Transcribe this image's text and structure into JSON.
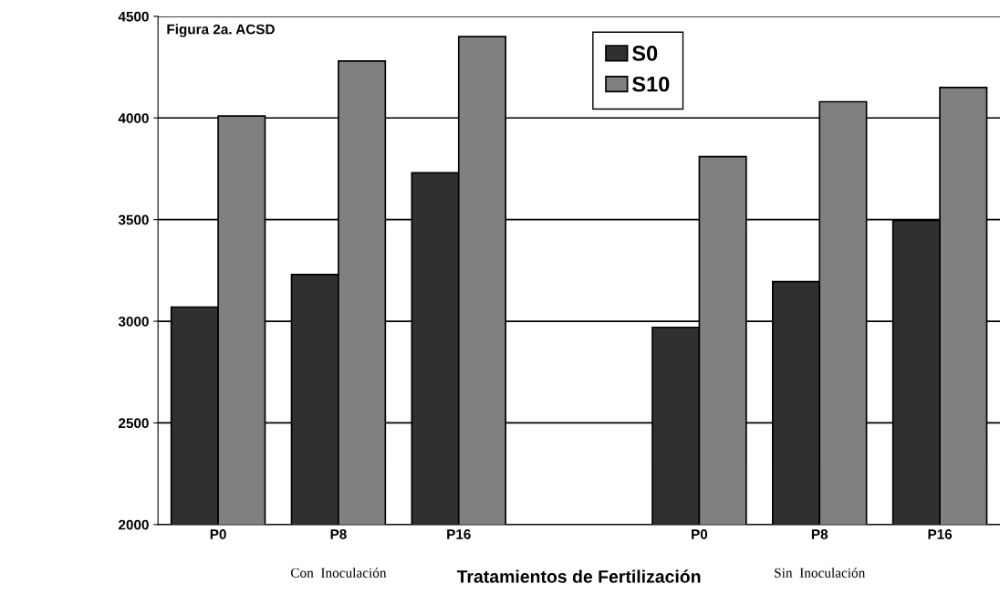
{
  "chart_data": {
    "type": "bar",
    "title": "Figura 2a. ACSD",
    "xlabel": "Tratamientos de Fertilización",
    "categories": [
      "P0",
      "P8",
      "P16",
      null,
      "P0",
      "P8",
      "P16"
    ],
    "series": [
      {
        "name": "S0",
        "color": "#303030",
        "values": [
          3070,
          3230,
          3730,
          null,
          2970,
          3195,
          3495
        ]
      },
      {
        "name": "S10",
        "color": "#808080",
        "values": [
          4010,
          4280,
          4400,
          null,
          3810,
          4080,
          4150
        ]
      }
    ],
    "ylim": [
      2000,
      4500
    ],
    "yticks": [
      2000,
      2500,
      3000,
      3500,
      4000,
      4500
    ],
    "grid": "y",
    "legend": "top",
    "annotations": [
      "Con  Inoculación",
      "Sin  Inoculación"
    ]
  }
}
